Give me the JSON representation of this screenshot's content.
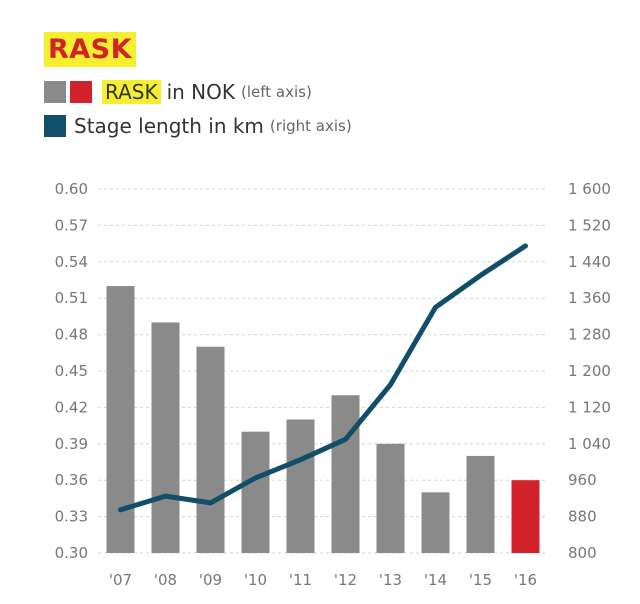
{
  "title": "RASK",
  "legend": {
    "series1_highlight": "RASK",
    "series1_rest": "in NOK",
    "series1_note": "(left axis)",
    "series2_label": "Stage length in km",
    "series2_note": "(right axis)"
  },
  "colors": {
    "bar": "#8a8a8a",
    "bar_highlight": "#d2232a",
    "line": "#114e68",
    "title_text": "#d2232a",
    "highlight_bg": "#f5ef30"
  },
  "chart_data": {
    "type": "bar",
    "categories": [
      "'07",
      "'08",
      "'09",
      "'10",
      "'11",
      "'12",
      "'13",
      "'14",
      "'15",
      "'16"
    ],
    "series": [
      {
        "name": "RASK in NOK",
        "type": "bar",
        "axis": "left",
        "values": [
          0.52,
          0.49,
          0.47,
          0.4,
          0.41,
          0.43,
          0.39,
          0.35,
          0.38,
          0.36
        ],
        "highlight_index": 9
      },
      {
        "name": "Stage length in km",
        "type": "line",
        "axis": "right",
        "values": [
          895,
          925,
          910,
          965,
          1005,
          1050,
          1170,
          1340,
          1410,
          1475
        ]
      }
    ],
    "ylim_left": [
      0.3,
      0.6
    ],
    "yticks_left": [
      "0.30",
      "0.33",
      "0.36",
      "0.39",
      "0.42",
      "0.45",
      "0.48",
      "0.51",
      "0.54",
      "0.57",
      "0.60"
    ],
    "ylim_right": [
      800,
      1600
    ],
    "yticks_right": [
      "800",
      "880",
      "960",
      "1 040",
      "1 120",
      "1 200",
      "1 280",
      "1 360",
      "1 440",
      "1 520",
      "1 600"
    ],
    "grid": true
  }
}
